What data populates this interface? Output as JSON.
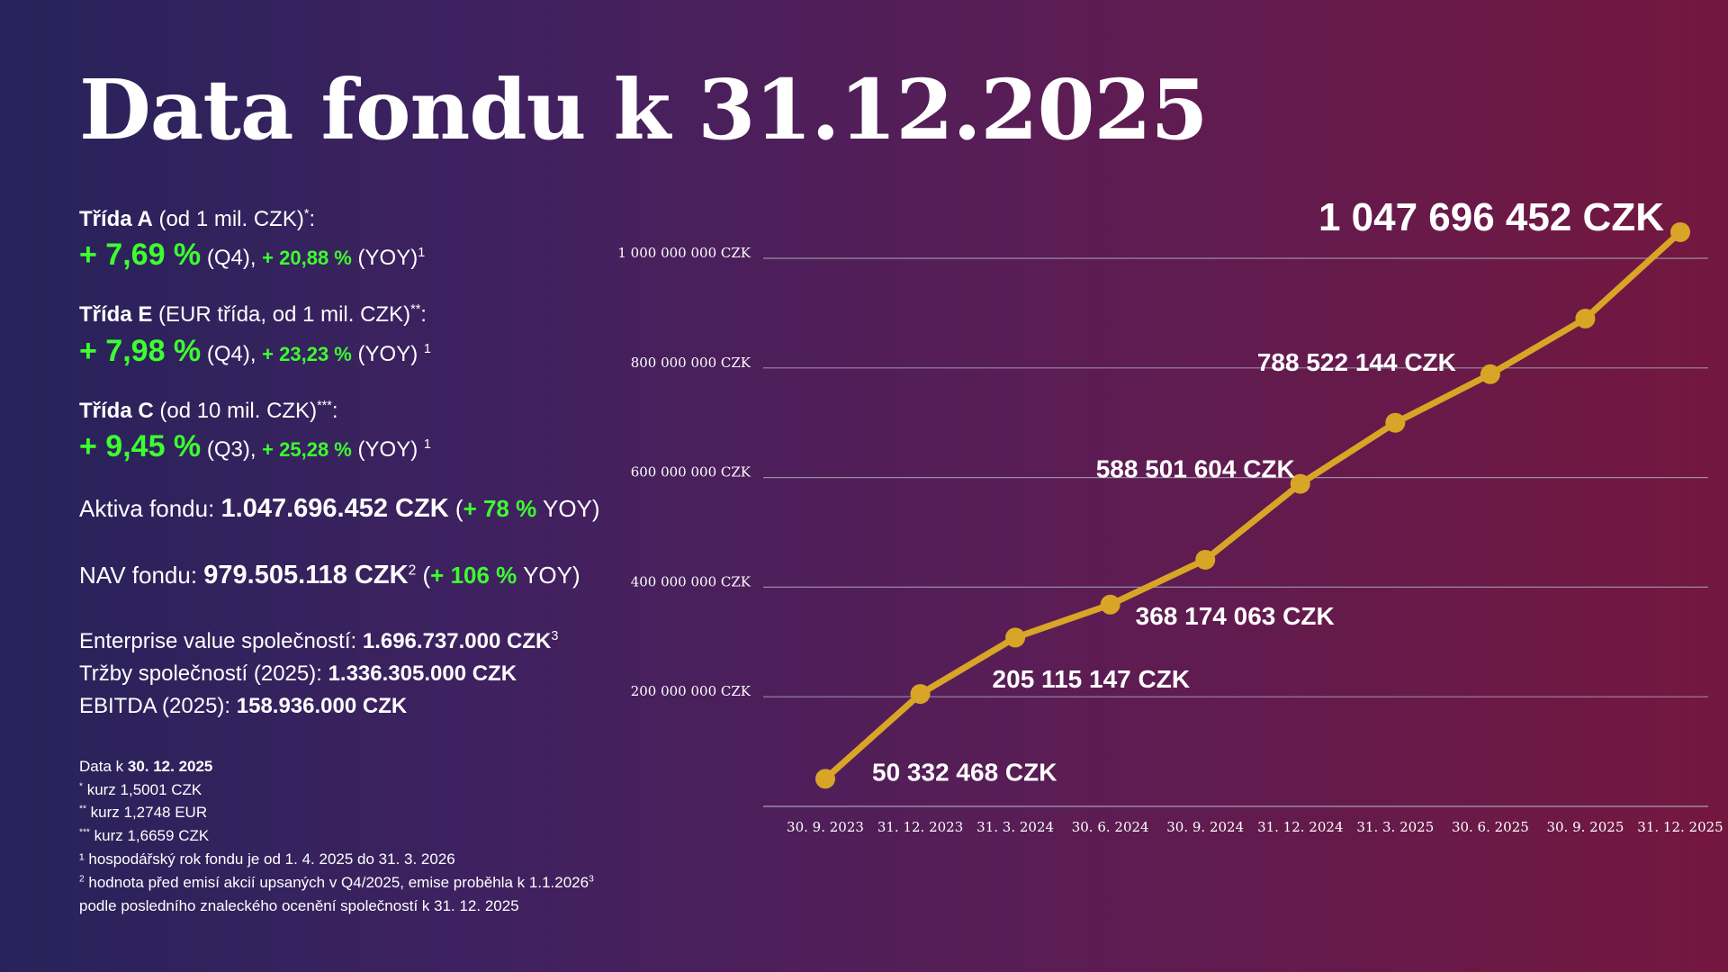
{
  "title": "Data fondu k 31.12.2025",
  "classes": [
    {
      "name": "Třída A",
      "desc": " (od 1 mil. CZK)",
      "mark": "*",
      "tail": ":",
      "q_value": "+ 7,69 %",
      "q_period": " (Q4), ",
      "yoy_value": "+ 20,88 %",
      "yoy_label": " (YOY)",
      "note_ref": "1"
    },
    {
      "name": "Třída E",
      "desc": " (EUR třída, od 1 mil. CZK)",
      "mark": "**",
      "tail": ":",
      "q_value": "+ 7,98 %",
      "q_period": " (Q4), ",
      "yoy_value": "+ 23,23 %",
      "yoy_label": " (YOY) ",
      "note_ref": "1"
    },
    {
      "name": "Třída C",
      "desc": " (od 10 mil. CZK)",
      "mark": "***",
      "tail": ":",
      "q_value": "+ 9,45 %",
      "q_period": " (Q3), ",
      "yoy_value": "+ 25,28 %",
      "yoy_label": " (YOY) ",
      "note_ref": "1"
    }
  ],
  "aktiva": {
    "label": "Aktiva fondu: ",
    "value": "1.047.696.452 CZK",
    "open": " (",
    "yoy_value": "+ 78 %",
    "yoy_label": " YOY)"
  },
  "nav": {
    "label": "NAV fondu: ",
    "value": "979.505.118 CZK",
    "note_ref": "2",
    "open": " (",
    "yoy_value": "+ 106 %",
    "yoy_label": " YOY)"
  },
  "enterprise": {
    "label": "Enterprise value společností: ",
    "value": "1.696.737.000 CZK",
    "note_ref": "3"
  },
  "trzby": {
    "label": "Tržby společností (2025): ",
    "value": "1.336.305.000 CZK"
  },
  "ebitda": {
    "label": "EBITDA (2025): ",
    "value": "158.936.000 CZK"
  },
  "notes": {
    "date_prefix": "Data k ",
    "date_value": "30. 12. 2025",
    "n1_mark": "*",
    "n1_text": " kurz 1,5001 CZK",
    "n2_mark": "**",
    "n2_text": " kurz 1,2748 EUR",
    "n3_mark": "***",
    "n3_text": " kurz 1,6659  CZK",
    "f1": "¹ hospodářský rok fondu je od 1. 4. 2025 do 31. 3. 2026",
    "f2_mark": "2",
    "f2_text": " hodnota před emisí akcií upsaných v Q4/2025, emise proběhla k 1.1.2026",
    "f3_mark": "3",
    "f3": "podle posledního znaleckého ocenění společností k 31. 12. 2025"
  },
  "colors": {
    "line": "#d8a526",
    "grid": "#9a8aa6",
    "accent_green": "#3dff2f"
  },
  "chart_data": {
    "type": "line",
    "categories": [
      "30. 9. 2023",
      "31. 12. 2023",
      "31. 3. 2024",
      "30. 6. 2024",
      "30. 9. 2024",
      "31. 12. 2024",
      "31. 3. 2025",
      "30. 6. 2025",
      "30. 9. 2025",
      "31. 12. 2025"
    ],
    "series": [
      {
        "values": [
          50332468,
          205115147,
          308000000,
          368174063,
          450000000,
          588501604,
          700000000,
          788522144,
          890000000,
          1047696452
        ]
      }
    ],
    "ylim": [
      0,
      1000000000
    ],
    "yticks": [
      200000000,
      400000000,
      600000000,
      800000000,
      1000000000
    ],
    "ytick_labels": [
      "200 000 000 CZK",
      "400 000 000 CZK",
      "600 000 000 CZK",
      "800 000 000 CZK",
      "1 000 000 000 CZK"
    ],
    "data_labels": [
      {
        "index": 0,
        "text": "50 332 468 CZK"
      },
      {
        "index": 1,
        "text": "205 115 147 CZK"
      },
      {
        "index": 3,
        "text": "368 174 063 CZK"
      },
      {
        "index": 5,
        "text": "588 501 604 CZK"
      },
      {
        "index": 7,
        "text": "788 522 144 CZK"
      },
      {
        "index": 9,
        "text": "1 047 696 452 CZK"
      }
    ],
    "grid": true,
    "legend": "none"
  }
}
